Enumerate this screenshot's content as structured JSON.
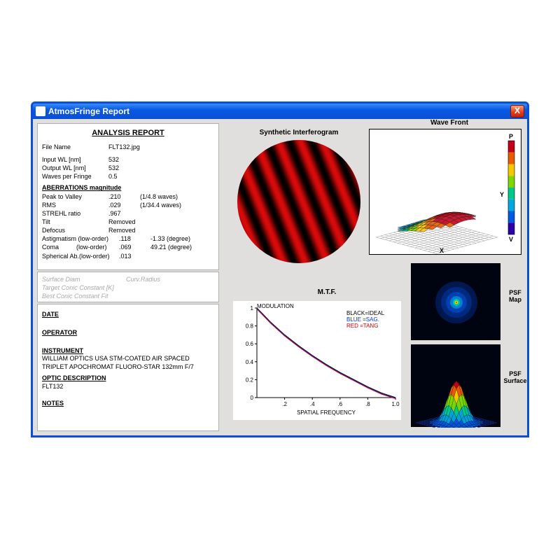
{
  "window": {
    "title": "AtmosFringe  Report",
    "close_symbol": "X"
  },
  "report": {
    "title": "ANALYSIS  REPORT",
    "file_label": "File Name",
    "file_value": "FLT132.jpg",
    "input_wl_label": "Input WL [nm]",
    "input_wl_value": "532",
    "output_wl_label": "Output WL [nm]",
    "output_wl_value": "532",
    "wpf_label": "Waves per Fringe",
    "wpf_value": "0.5",
    "aberr_header": "ABERRATIONS magnitude",
    "ptv_label": "Peak to Valley",
    "ptv_value": ".210",
    "ptv_note": "(1/4.8 waves)",
    "rms_label": "RMS",
    "rms_value": ".029",
    "rms_note": "(1/34.4 waves)",
    "strehl_label": "STREHL ratio",
    "strehl_value": ".967",
    "tilt_label": "Tilt",
    "tilt_value": "Removed",
    "defocus_label": "Defocus",
    "defocus_value": "Removed",
    "astig_label": "Astigmatism (low-order)",
    "astig_value": ".118",
    "astig_note": "-1.33  (degree)",
    "coma_label": "Coma          (low-order)",
    "coma_value": ".069",
    "coma_note": "49.21  (degree)",
    "sph_label": "Spherical Ab.(low-order)",
    "sph_value": ".013",
    "surface_diam": "Surface Diam",
    "curv_radius": "Curv.Radius",
    "target_conic": "Target Conic Constant [K]",
    "best_conic": "Best Conic Constant Fit",
    "date_label": "DATE",
    "operator_label": "OPERATOR",
    "instrument_label": "INSTRUMENT",
    "instrument_value": "WILLIAM OPTICS USA STM-COATED AIR SPACED TRIPLET APOCHROMAT FLUORO-STAR 132mm F/7",
    "optic_desc_label": "OPTIC DESCRIPTION",
    "optic_desc_value": "FLT132",
    "notes_label": "NOTES"
  },
  "interferogram": {
    "title": "Synthetic Interferogram",
    "radius": 88,
    "stripe_color_bright": "#e01010",
    "stripe_color_dark": "#100000",
    "stripe_count": 6
  },
  "wavefront": {
    "title": "Wave Front",
    "P_label": "P",
    "V_label": "V",
    "X_label": "X",
    "Y_label": "Y",
    "colorbar": [
      "#c4001a",
      "#e85b00",
      "#f7c700",
      "#7ed800",
      "#00c98b",
      "#00a9e0",
      "#005be0",
      "#2b00a8"
    ]
  },
  "mtf": {
    "title": "M.T.F.",
    "ylabel": "MODULATION",
    "xlabel": "SPATIAL FREQUENCY",
    "yticks": [
      "0",
      "0.2",
      "0.4",
      "0.6",
      "0.8",
      "1"
    ],
    "xticks": [
      ".2",
      ".4",
      ".6",
      ".8",
      "1.0"
    ],
    "legend_black": "BLACK=IDEAL",
    "legend_blue": "BLUE  =SAG.",
    "legend_red": "RED   =TANG",
    "curve": [
      [
        0,
        1.0
      ],
      [
        0.1,
        0.84
      ],
      [
        0.2,
        0.7
      ],
      [
        0.3,
        0.58
      ],
      [
        0.4,
        0.47
      ],
      [
        0.5,
        0.37
      ],
      [
        0.6,
        0.28
      ],
      [
        0.7,
        0.2
      ],
      [
        0.8,
        0.12
      ],
      [
        0.9,
        0.05
      ],
      [
        1.0,
        0.0
      ]
    ],
    "colors": {
      "ideal": "#000000",
      "sag": "#0030ff",
      "tang": "#d00000"
    }
  },
  "psf": {
    "map_label": "PSF Map",
    "surface_label": "PSF Surface"
  }
}
